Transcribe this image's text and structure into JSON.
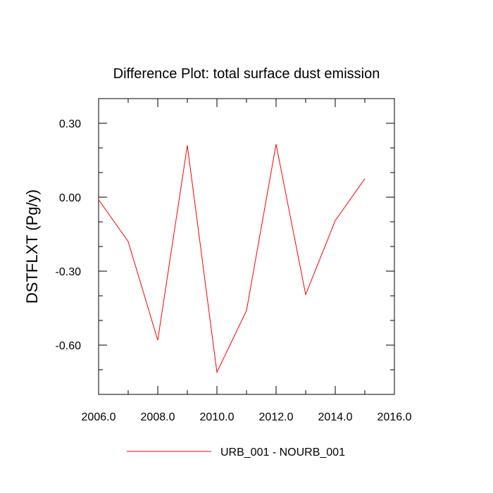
{
  "chart_data": {
    "type": "line",
    "title": "Difference Plot: total surface dust emission",
    "xlabel": "",
    "ylabel": "DSTFLXT  (Pg/y)",
    "xlim": [
      2006,
      2016
    ],
    "ylim": [
      -0.8,
      0.4
    ],
    "x_ticks": [
      2006,
      2008,
      2010,
      2012,
      2014,
      2016
    ],
    "x_tick_labels": [
      "2006.0",
      "2008.0",
      "2010.0",
      "2012.0",
      "2014.0",
      "2016.0"
    ],
    "y_ticks": [
      0.3,
      0.0,
      -0.3,
      -0.6
    ],
    "y_tick_labels": [
      "0.30",
      "0.00",
      "-0.30",
      "-0.60"
    ],
    "x": [
      2006,
      2007,
      2008,
      2009,
      2010,
      2011,
      2012,
      2013,
      2014,
      2015
    ],
    "series": [
      {
        "name": "URB_001 - NOURB_001",
        "color": "#ff0000",
        "values": [
          -0.01,
          -0.18,
          -0.58,
          0.21,
          -0.71,
          -0.46,
          0.215,
          -0.395,
          -0.095,
          0.075
        ]
      }
    ],
    "grid": false,
    "legend_position": "bottom"
  }
}
